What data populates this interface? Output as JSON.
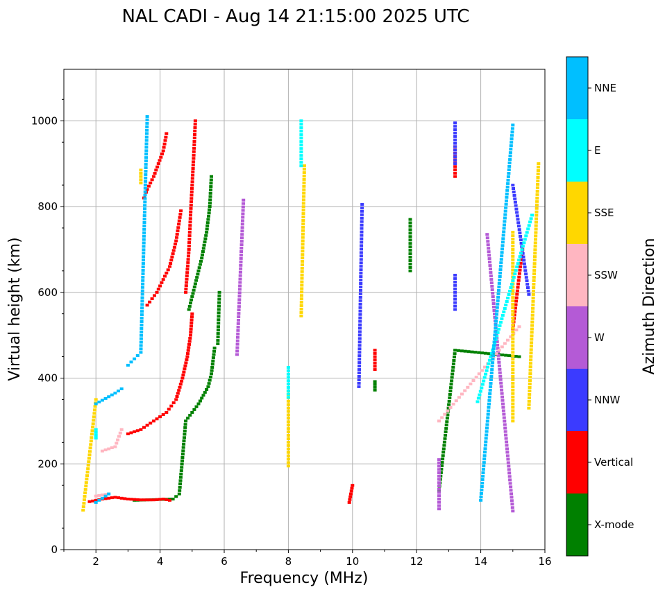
{
  "chart_data": {
    "type": "scatter",
    "title": "NAL CADI - Aug 14 21:15:00 2025 UTC",
    "xlabel": "Frequency (MHz)",
    "ylabel": "Virtual height (km)",
    "xlim": [
      1,
      16
    ],
    "ylim": [
      0,
      1120
    ],
    "xticks": [
      2,
      4,
      6,
      8,
      10,
      12,
      14,
      16
    ],
    "yticks": [
      0,
      200,
      400,
      600,
      800,
      1000
    ],
    "grid": true,
    "colorbar": {
      "label": "Azimuth Direction",
      "categories": [
        {
          "name": "X-mode",
          "color": "#008000"
        },
        {
          "name": "Vertical",
          "color": "#ff0000"
        },
        {
          "name": "NNW",
          "color": "#3b3bff"
        },
        {
          "name": "W",
          "color": "#b45ad6"
        },
        {
          "name": "SSW",
          "color": "#ffb6c1"
        },
        {
          "name": "SSE",
          "color": "#ffd700"
        },
        {
          "name": "E",
          "color": "#00ffff"
        },
        {
          "name": "NNE",
          "color": "#00bfff"
        }
      ]
    },
    "series": [
      {
        "name": "X-mode",
        "traces": [
          {
            "f": [
              3.2,
              3.6,
              4.0,
              4.4,
              4.6,
              4.8,
              5.0,
              5.2,
              5.35,
              5.5,
              5.6,
              5.65,
              5.7
            ],
            "h": [
              115,
              116,
              117,
              118,
              130,
              300,
              320,
              340,
              360,
              380,
              410,
              440,
              470
            ]
          },
          {
            "f": [
              4.9,
              5.1,
              5.3,
              5.45,
              5.55,
              5.6
            ],
            "h": [
              560,
              620,
              680,
              740,
              800,
              870
            ]
          },
          {
            "f": [
              5.8,
              5.85
            ],
            "h": [
              480,
              600
            ]
          },
          {
            "f": [
              10.7,
              10.7
            ],
            "h": [
              372,
              392
            ]
          },
          {
            "f": [
              11.8,
              11.8
            ],
            "h": [
              650,
              770
            ]
          },
          {
            "f": [
              12.7,
              13.2,
              15.2
            ],
            "h": [
              140,
              465,
              450
            ]
          }
        ]
      },
      {
        "name": "Vertical",
        "traces": [
          {
            "f": [
              1.8,
              2.2,
              2.6,
              3.0,
              3.4,
              3.8,
              4.1,
              4.3
            ],
            "h": [
              112,
              118,
              122,
              118,
              116,
              116,
              118,
              115
            ]
          },
          {
            "f": [
              3.0,
              3.4,
              3.8,
              4.2,
              4.5,
              4.7,
              4.85,
              4.95,
              5.0
            ],
            "h": [
              270,
              280,
              300,
              320,
              350,
              400,
              450,
              500,
              550
            ]
          },
          {
            "f": [
              3.6,
              3.9,
              4.1,
              4.3,
              4.5,
              4.65
            ],
            "h": [
              570,
              600,
              630,
              660,
              720,
              790
            ]
          },
          {
            "f": [
              3.5,
              3.6,
              3.8,
              3.95,
              4.1,
              4.2
            ],
            "h": [
              820,
              840,
              870,
              900,
              930,
              970
            ]
          },
          {
            "f": [
              4.8,
              4.9,
              4.95,
              5.0,
              5.05,
              5.1
            ],
            "h": [
              600,
              700,
              780,
              850,
              920,
              1000
            ]
          },
          {
            "f": [
              9.9,
              9.95,
              10.0
            ],
            "h": [
              110,
              130,
              150
            ]
          },
          {
            "f": [
              10.7,
              10.7
            ],
            "h": [
              420,
              465
            ]
          },
          {
            "f": [
              13.2,
              13.2
            ],
            "h": [
              870,
              940
            ]
          },
          {
            "f": [
              15.0,
              15.3
            ],
            "h": [
              515,
              700
            ]
          }
        ]
      },
      {
        "name": "NNW",
        "traces": [
          {
            "f": [
              13.2,
              13.2
            ],
            "h": [
              560,
              640
            ]
          },
          {
            "f": [
              13.2,
              13.2
            ],
            "h": [
              900,
              995
            ]
          },
          {
            "f": [
              15.0,
              15.5
            ],
            "h": [
              850,
              595
            ]
          },
          {
            "f": [
              10.2,
              10.3
            ],
            "h": [
              380,
              805
            ]
          }
        ]
      },
      {
        "name": "W",
        "traces": [
          {
            "f": [
              12.7,
              12.7
            ],
            "h": [
              95,
              210
            ]
          },
          {
            "f": [
              6.6,
              6.4
            ],
            "h": [
              815,
              455
            ]
          },
          {
            "f": [
              14.2,
              15.0
            ],
            "h": [
              735,
              90
            ]
          }
        ]
      },
      {
        "name": "SSW",
        "traces": [
          {
            "f": [
              2.2,
              2.6,
              2.8
            ],
            "h": [
              230,
              240,
              280
            ]
          },
          {
            "f": [
              2.0,
              2.4
            ],
            "h": [
              125,
              130
            ]
          },
          {
            "f": [
              12.7,
              15.2
            ],
            "h": [
              300,
              520
            ]
          }
        ]
      },
      {
        "name": "SSE",
        "traces": [
          {
            "f": [
              1.6,
              2.0
            ],
            "h": [
              92,
              350
            ]
          },
          {
            "f": [
              3.4,
              3.4
            ],
            "h": [
              855,
              885
            ]
          },
          {
            "f": [
              8.4,
              8.5
            ],
            "h": [
              545,
              895
            ]
          },
          {
            "f": [
              8.0,
              8.0
            ],
            "h": [
              370,
              195
            ]
          },
          {
            "f": [
              15.0,
              15.0
            ],
            "h": [
              300,
              740
            ]
          },
          {
            "f": [
              15.5,
              15.8
            ],
            "h": [
              330,
              900
            ]
          }
        ]
      },
      {
        "name": "E",
        "traces": [
          {
            "f": [
              2.0,
              2.0
            ],
            "h": [
              260,
              280
            ]
          },
          {
            "f": [
              8.0,
              8.0
            ],
            "h": [
              355,
              425
            ]
          },
          {
            "f": [
              8.4,
              8.4
            ],
            "h": [
              895,
              1000
            ]
          },
          {
            "f": [
              13.9,
              15.6
            ],
            "h": [
              345,
              780
            ]
          }
        ]
      },
      {
        "name": "NNE",
        "traces": [
          {
            "f": [
              2.0,
              2.6,
              2.8
            ],
            "h": [
              340,
              365,
              375
            ]
          },
          {
            "f": [
              3.0,
              3.4,
              3.6
            ],
            "h": [
              430,
              460,
              1010
            ]
          },
          {
            "f": [
              2.0,
              2.4
            ],
            "h": [
              110,
              130
            ]
          },
          {
            "f": [
              14.0,
              15.0
            ],
            "h": [
              115,
              990
            ]
          }
        ]
      }
    ]
  }
}
